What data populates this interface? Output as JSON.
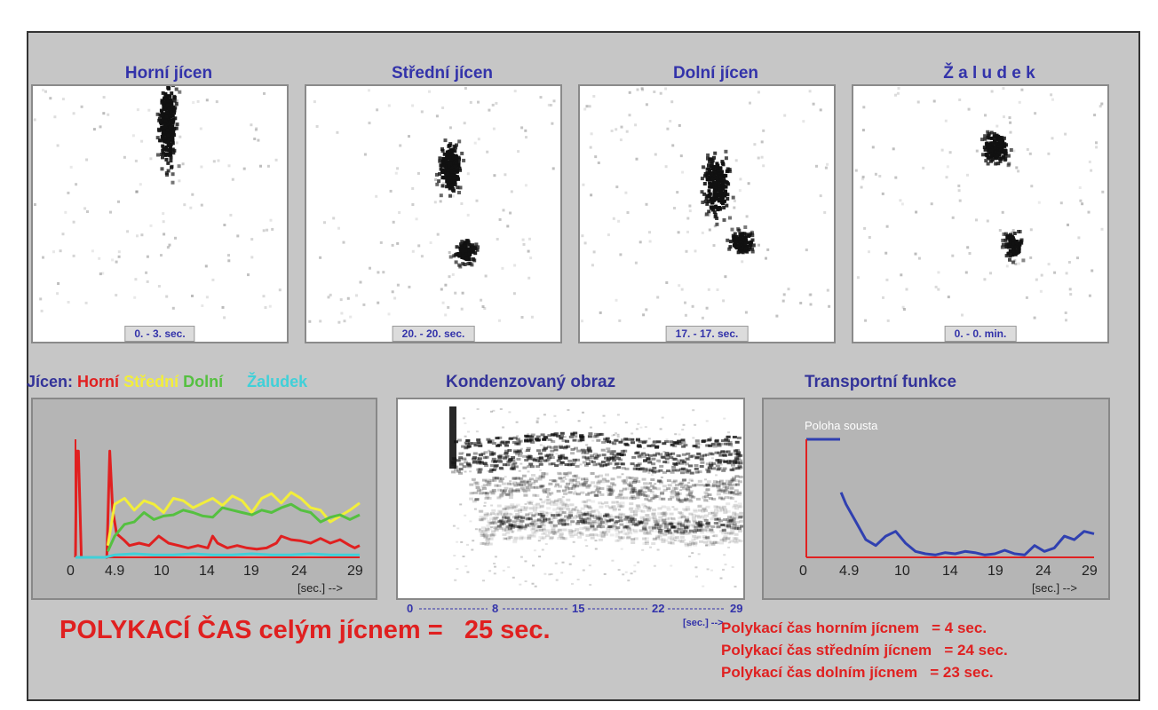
{
  "panels": [
    {
      "title": "Horní jícen",
      "time": "0. - 3. sec."
    },
    {
      "title": "Střední jícen",
      "time": "20. - 20. sec."
    },
    {
      "title": "Dolní jícen",
      "time": "17. - 17. sec."
    },
    {
      "title": "Ž a l u d e k",
      "time": "0. - 0. min."
    }
  ],
  "legend": {
    "prefix": "Jícen:",
    "items": [
      {
        "label": "Horní",
        "color": "#e02020"
      },
      {
        "label": "Střední",
        "color": "#f2ee3a"
      },
      {
        "label": "Dolní",
        "color": "#55c040"
      },
      {
        "label": "Žaludek",
        "color": "#40d0d8"
      }
    ]
  },
  "condensed": {
    "title": "Kondenzovaný obraz",
    "axis_ticks": [
      "0",
      "8",
      "15",
      "22",
      "29"
    ],
    "axis_unit": "[sec.] -->"
  },
  "transport": {
    "title": "Transportní funkce",
    "legend_label": "Poloha sousta"
  },
  "chart_data": [
    {
      "type": "line",
      "x_ticks": [
        "0",
        "4.9",
        "10",
        "14",
        "19",
        "24",
        "29"
      ],
      "xlabel": "[sec.] -->",
      "xlim": [
        0,
        29
      ],
      "series": [
        {
          "name": "Horní",
          "color": "#e02020",
          "x": [
            0,
            0.1,
            0.3,
            0.6,
            2,
            3.2,
            3.5,
            3.8,
            4.2,
            4.9,
            5.5,
            6.5,
            7.5,
            8.5,
            9.5,
            10.5,
            11.5,
            12.5,
            13.5,
            14,
            14.5,
            15.5,
            16.5,
            17.5,
            18.5,
            19.5,
            20.5,
            21,
            22,
            23,
            24,
            25,
            26,
            27,
            28,
            28.5,
            29
          ],
          "y": [
            0,
            90,
            90,
            0,
            0,
            0,
            90,
            40,
            20,
            15,
            10,
            12,
            10,
            18,
            12,
            10,
            8,
            10,
            8,
            18,
            12,
            8,
            10,
            8,
            7,
            8,
            12,
            18,
            15,
            14,
            12,
            16,
            12,
            15,
            10,
            8,
            10
          ]
        },
        {
          "name": "Střední",
          "color": "#f2ee3a",
          "x": [
            3.3,
            4,
            5,
            6,
            7,
            8,
            9,
            10,
            11,
            12,
            13,
            14,
            15,
            16,
            17,
            18,
            19,
            20,
            21,
            22,
            23,
            24,
            25,
            26,
            27,
            28,
            29
          ],
          "y": [
            10,
            45,
            50,
            40,
            48,
            45,
            38,
            50,
            48,
            42,
            46,
            50,
            44,
            52,
            48,
            38,
            50,
            54,
            46,
            55,
            50,
            42,
            40,
            30,
            35,
            40,
            46
          ]
        },
        {
          "name": "Dolní",
          "color": "#55c040",
          "x": [
            3.3,
            4,
            5,
            6,
            7,
            8,
            9,
            10,
            11,
            12,
            13,
            14,
            15,
            16,
            17,
            18,
            19,
            20,
            21,
            22,
            23,
            24,
            25,
            26,
            27,
            28,
            29
          ],
          "y": [
            5,
            18,
            28,
            30,
            38,
            32,
            35,
            36,
            40,
            38,
            35,
            34,
            42,
            40,
            38,
            36,
            40,
            38,
            42,
            45,
            40,
            38,
            30,
            34,
            36,
            32,
            36
          ]
        },
        {
          "name": "Žaludek",
          "color": "#40d0d8",
          "x": [
            0,
            3,
            4,
            6,
            8,
            10,
            12,
            14,
            16,
            18,
            20,
            22,
            24,
            26,
            28,
            29
          ],
          "y": [
            0,
            0,
            2,
            3,
            2,
            2,
            3,
            2,
            2,
            3,
            2,
            2,
            3,
            2,
            2,
            2
          ]
        }
      ]
    },
    {
      "type": "line",
      "x_ticks": [
        "0",
        "4.9",
        "10",
        "14",
        "19",
        "24",
        "29"
      ],
      "xlabel": "[sec.] -->",
      "xlim": [
        0,
        29
      ],
      "series": [
        {
          "name": "Poloha sousta",
          "color": "#3040b0",
          "x": [
            3.5,
            4,
            5,
            6,
            7,
            8,
            9,
            10,
            11,
            12,
            13,
            14,
            15,
            16,
            17,
            18,
            19,
            20,
            21,
            22,
            23,
            24,
            25,
            26,
            27,
            28,
            29
          ],
          "y": [
            55,
            45,
            30,
            15,
            10,
            18,
            22,
            12,
            5,
            3,
            2,
            4,
            3,
            5,
            4,
            2,
            3,
            6,
            3,
            2,
            10,
            5,
            8,
            18,
            15,
            22,
            20
          ]
        }
      ]
    }
  ],
  "summary": {
    "main": "POLYKACÍ ČAS celým jícnem =   25 sec."
  },
  "stats": [
    "Polykací čas horním jícnem   = 4 sec.",
    "Polykací čas středním jícnem   = 24 sec.",
    "Polykací čas dolním jícnem   = 23 sec."
  ]
}
